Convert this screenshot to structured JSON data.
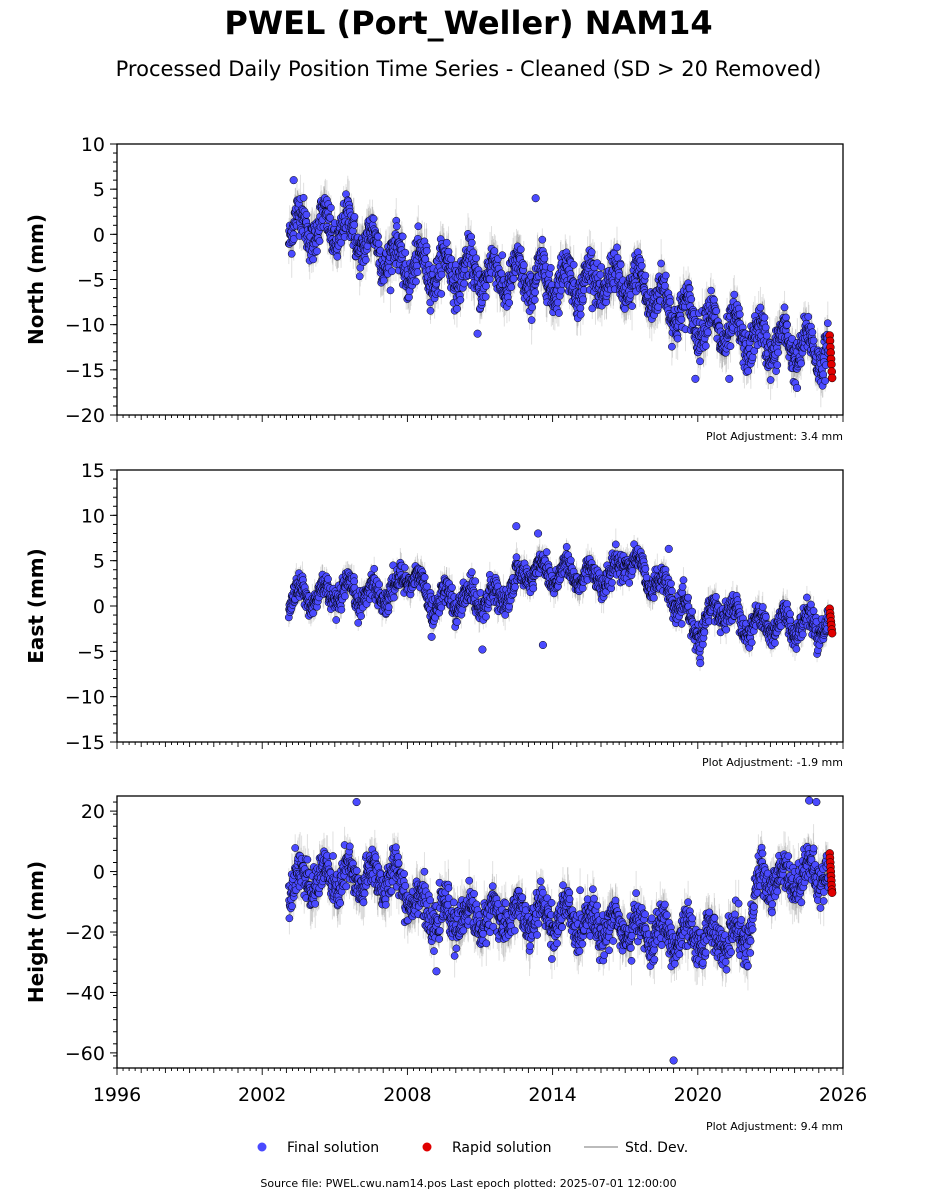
{
  "title": "PWEL (Port_Weller) NAM14",
  "subtitle": "Processed Daily Position Time Series - Cleaned (SD > 20 Removed)",
  "source_text": "Source file: PWEL.cwu.nam14.pos  Last epoch plotted: 2025-07-01 12:00:00",
  "colors": {
    "final": "#4a4aff",
    "rapid": "#e00000",
    "stddev": "#bbbbbb",
    "edge": "#000000"
  },
  "legend": [
    {
      "key": "final",
      "label": "Final solution"
    },
    {
      "key": "rapid",
      "label": "Rapid solution"
    },
    {
      "key": "stddev",
      "label": "Std. Dev."
    }
  ],
  "chart_data": [
    {
      "type": "scatter",
      "ylabel": "North (mm)",
      "xlim": [
        1996,
        2026
      ],
      "ylim": [
        -20,
        10
      ],
      "yticks": [
        10,
        5,
        0,
        -5,
        -10,
        -15,
        -20
      ],
      "adjustment": "Plot Adjustment: 3.4 mm",
      "series": [
        {
          "name": "Final solution",
          "x_range": [
            2003.1,
            2025.4
          ],
          "trend": [
            [
              2003.1,
              1.0
            ],
            [
              2005.5,
              0.5
            ],
            [
              2008.0,
              -3.5
            ],
            [
              2013.0,
              -5.0
            ],
            [
              2017.5,
              -5.5
            ],
            [
              2019.5,
              -9.0
            ],
            [
              2022.0,
              -11.5
            ],
            [
              2025.4,
              -13.0
            ]
          ],
          "scatter": 2.0,
          "seasonal": 1.8,
          "outliers": [
            [
              2003.3,
              6.0
            ],
            [
              2013.3,
              4.0
            ],
            [
              2019.9,
              -16.0
            ],
            [
              2021.3,
              -16.0
            ],
            [
              2024.1,
              -17.0
            ],
            [
              2010.9,
              -11.0
            ]
          ]
        },
        {
          "name": "Rapid solution",
          "x_range": [
            2025.45,
            2025.55
          ],
          "values": [
            -11.2,
            -11.8,
            -12.5,
            -13.1,
            -13.8,
            -14.4,
            -15.2,
            -15.9
          ]
        }
      ]
    },
    {
      "type": "scatter",
      "ylabel": "East (mm)",
      "xlim": [
        1996,
        2026
      ],
      "ylim": [
        -15,
        15
      ],
      "yticks": [
        15,
        10,
        5,
        0,
        -5,
        -10,
        -15
      ],
      "adjustment": "Plot Adjustment: -1.9 mm",
      "series": [
        {
          "name": "Final solution",
          "x_range": [
            2003.1,
            2025.4
          ],
          "trend": [
            [
              2003.1,
              1.0
            ],
            [
              2007.5,
              1.5
            ],
            [
              2008.0,
              4.0
            ],
            [
              2009.0,
              0.5
            ],
            [
              2012.0,
              1.0
            ],
            [
              2013.0,
              4.0
            ],
            [
              2016.5,
              3.0
            ],
            [
              2017.0,
              5.5
            ],
            [
              2019.0,
              1.0
            ],
            [
              2020.0,
              -3.0
            ],
            [
              2021.0,
              0.0
            ],
            [
              2022.0,
              -2.0
            ],
            [
              2025.4,
              -2.0
            ]
          ],
          "scatter": 1.3,
          "seasonal": 1.2,
          "outliers": [
            [
              2012.5,
              8.8
            ],
            [
              2013.4,
              8.0
            ],
            [
              2009.0,
              -3.4
            ],
            [
              2011.1,
              -4.8
            ],
            [
              2013.6,
              -4.3
            ],
            [
              2018.8,
              6.3
            ],
            [
              2020.1,
              -6.3
            ]
          ]
        },
        {
          "name": "Rapid solution",
          "x_range": [
            2025.45,
            2025.55
          ],
          "values": [
            -0.3,
            -0.8,
            -1.2,
            -1.7,
            -2.1,
            -2.6,
            -3.0
          ]
        }
      ]
    },
    {
      "type": "scatter",
      "ylabel": "Height (mm)",
      "xlim": [
        1996,
        2026
      ],
      "ylim": [
        -65,
        25
      ],
      "yticks": [
        20,
        0,
        -20,
        -40,
        -60
      ],
      "xticks": [
        1996,
        2002,
        2008,
        2014,
        2020,
        2026
      ],
      "adjustment": "Plot Adjustment: 9.4 mm",
      "series": [
        {
          "name": "Final solution",
          "x_range": [
            2003.1,
            2025.4
          ],
          "trend": [
            [
              2003.1,
              -3.0
            ],
            [
              2007.5,
              -2.0
            ],
            [
              2009.0,
              -15.0
            ],
            [
              2014.0,
              -15.0
            ],
            [
              2019.5,
              -22.0
            ],
            [
              2022.0,
              -22.0
            ],
            [
              2022.6,
              -3.0
            ],
            [
              2025.4,
              0.0
            ]
          ],
          "scatter": 6.0,
          "seasonal": 4.5,
          "outliers": [
            [
              2005.9,
              23.0
            ],
            [
              2019.0,
              -62.5
            ],
            [
              2024.6,
              23.5
            ],
            [
              2024.9,
              23.0
            ],
            [
              2009.2,
              -33.0
            ]
          ]
        },
        {
          "name": "Rapid solution",
          "x_range": [
            2025.45,
            2025.55
          ],
          "values": [
            6.0,
            4.5,
            3.0,
            1.5,
            0.0,
            -1.5,
            -3.0,
            -4.5,
            -6.0,
            -7.0
          ]
        }
      ]
    }
  ]
}
